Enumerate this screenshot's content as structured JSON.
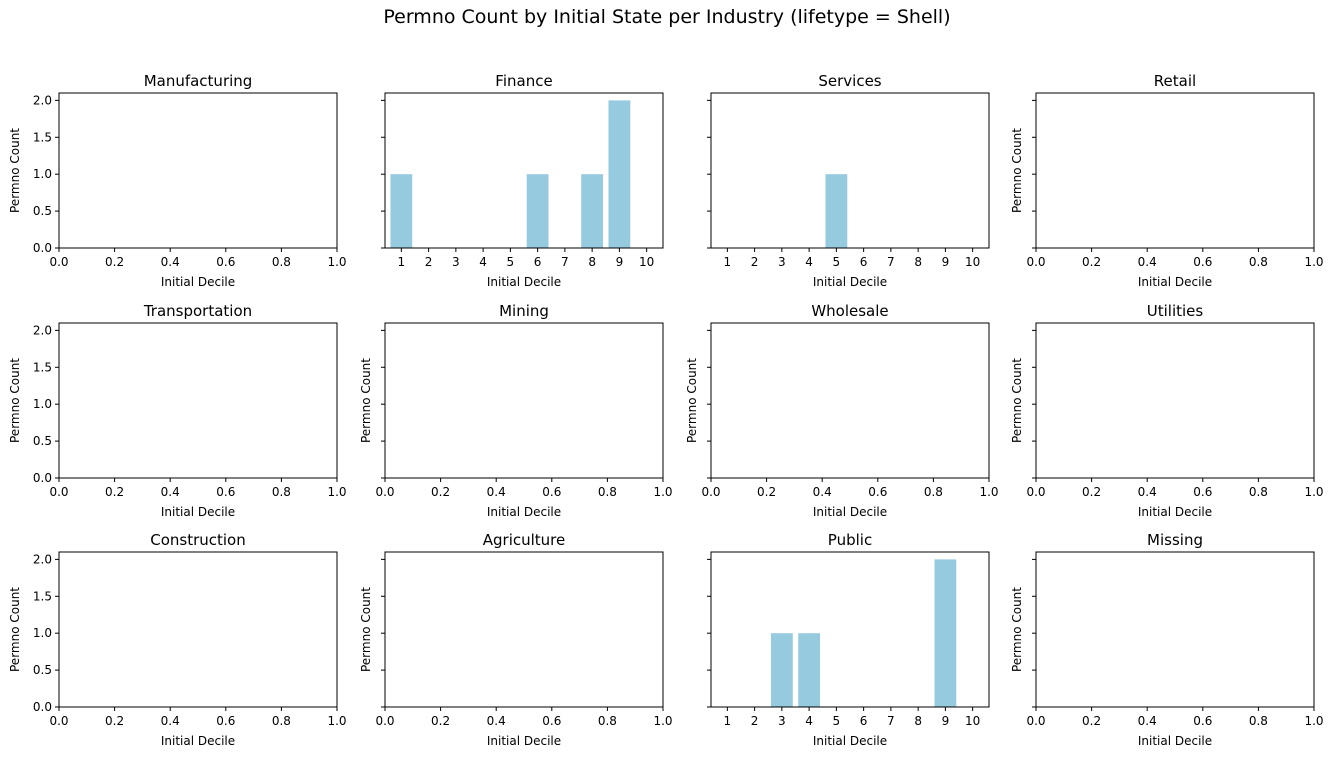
{
  "suptitle": "Permno Count by Initial State per Industry (lifetype = Shell)",
  "chart_data": [
    {
      "type": "bar",
      "title": "Manufacturing",
      "xlabel": "Initial Decile",
      "ylabel": "Permno Count",
      "categories": [],
      "values": [],
      "xlim": [
        0,
        1
      ],
      "ylim": [
        0,
        2.1
      ],
      "grid": false
    },
    {
      "type": "bar",
      "title": "Finance",
      "xlabel": "Initial Decile",
      "ylabel": "",
      "categories": [
        "1",
        "2",
        "3",
        "4",
        "5",
        "6",
        "7",
        "8",
        "9",
        "10"
      ],
      "values": [
        1,
        0,
        0,
        0,
        0,
        1,
        0,
        1,
        2,
        0
      ],
      "ylim": [
        0,
        2.1
      ],
      "grid": false
    },
    {
      "type": "bar",
      "title": "Services",
      "xlabel": "Initial Decile",
      "ylabel": "",
      "categories": [
        "1",
        "2",
        "3",
        "4",
        "5",
        "6",
        "7",
        "8",
        "9",
        "10"
      ],
      "values": [
        0,
        0,
        0,
        0,
        1,
        0,
        0,
        0,
        0,
        0
      ],
      "ylim": [
        0,
        2.1
      ],
      "grid": false
    },
    {
      "type": "bar",
      "title": "Retail",
      "xlabel": "Initial Decile",
      "ylabel": "Permno Count",
      "categories": [],
      "values": [],
      "xlim": [
        0,
        1
      ],
      "ylim": [
        0,
        2.1
      ],
      "grid": false
    },
    {
      "type": "bar",
      "title": "Transportation",
      "xlabel": "Initial Decile",
      "ylabel": "Permno Count",
      "categories": [],
      "values": [],
      "xlim": [
        0,
        1
      ],
      "ylim": [
        0,
        2.1
      ],
      "grid": false
    },
    {
      "type": "bar",
      "title": "Mining",
      "xlabel": "Initial Decile",
      "ylabel": "Permno Count",
      "categories": [],
      "values": [],
      "xlim": [
        0,
        1
      ],
      "ylim": [
        0,
        2.1
      ],
      "grid": false
    },
    {
      "type": "bar",
      "title": "Wholesale",
      "xlabel": "Initial Decile",
      "ylabel": "Permno Count",
      "categories": [],
      "values": [],
      "xlim": [
        0,
        1
      ],
      "ylim": [
        0,
        2.1
      ],
      "grid": false
    },
    {
      "type": "bar",
      "title": "Utilities",
      "xlabel": "Initial Decile",
      "ylabel": "Permno Count",
      "categories": [],
      "values": [],
      "xlim": [
        0,
        1
      ],
      "ylim": [
        0,
        2.1
      ],
      "grid": false
    },
    {
      "type": "bar",
      "title": "Construction",
      "xlabel": "Initial Decile",
      "ylabel": "Permno Count",
      "categories": [],
      "values": [],
      "xlim": [
        0,
        1
      ],
      "ylim": [
        0,
        2.1
      ],
      "grid": false
    },
    {
      "type": "bar",
      "title": "Agriculture",
      "xlabel": "Initial Decile",
      "ylabel": "Permno Count",
      "categories": [],
      "values": [],
      "xlim": [
        0,
        1
      ],
      "ylim": [
        0,
        2.1
      ],
      "grid": false
    },
    {
      "type": "bar",
      "title": "Public",
      "xlabel": "Initial Decile",
      "ylabel": "",
      "categories": [
        "1",
        "2",
        "3",
        "4",
        "5",
        "6",
        "7",
        "8",
        "9",
        "10"
      ],
      "values": [
        0,
        0,
        1,
        1,
        0,
        0,
        0,
        0,
        2,
        0
      ],
      "ylim": [
        0,
        2.1
      ],
      "grid": false
    },
    {
      "type": "bar",
      "title": "Missing",
      "xlabel": "Initial Decile",
      "ylabel": "Permno Count",
      "categories": [],
      "values": [],
      "xlim": [
        0,
        1
      ],
      "ylim": [
        0,
        2.1
      ],
      "grid": false
    }
  ],
  "y_ticks": [
    "0.0",
    "0.5",
    "1.0",
    "1.5",
    "2.0"
  ],
  "empty_x_ticks": [
    "0.0",
    "0.2",
    "0.4",
    "0.6",
    "0.8",
    "1.0"
  ],
  "colors": {
    "bar": "#96cadf",
    "axes": "#000000",
    "background": "#ffffff"
  }
}
